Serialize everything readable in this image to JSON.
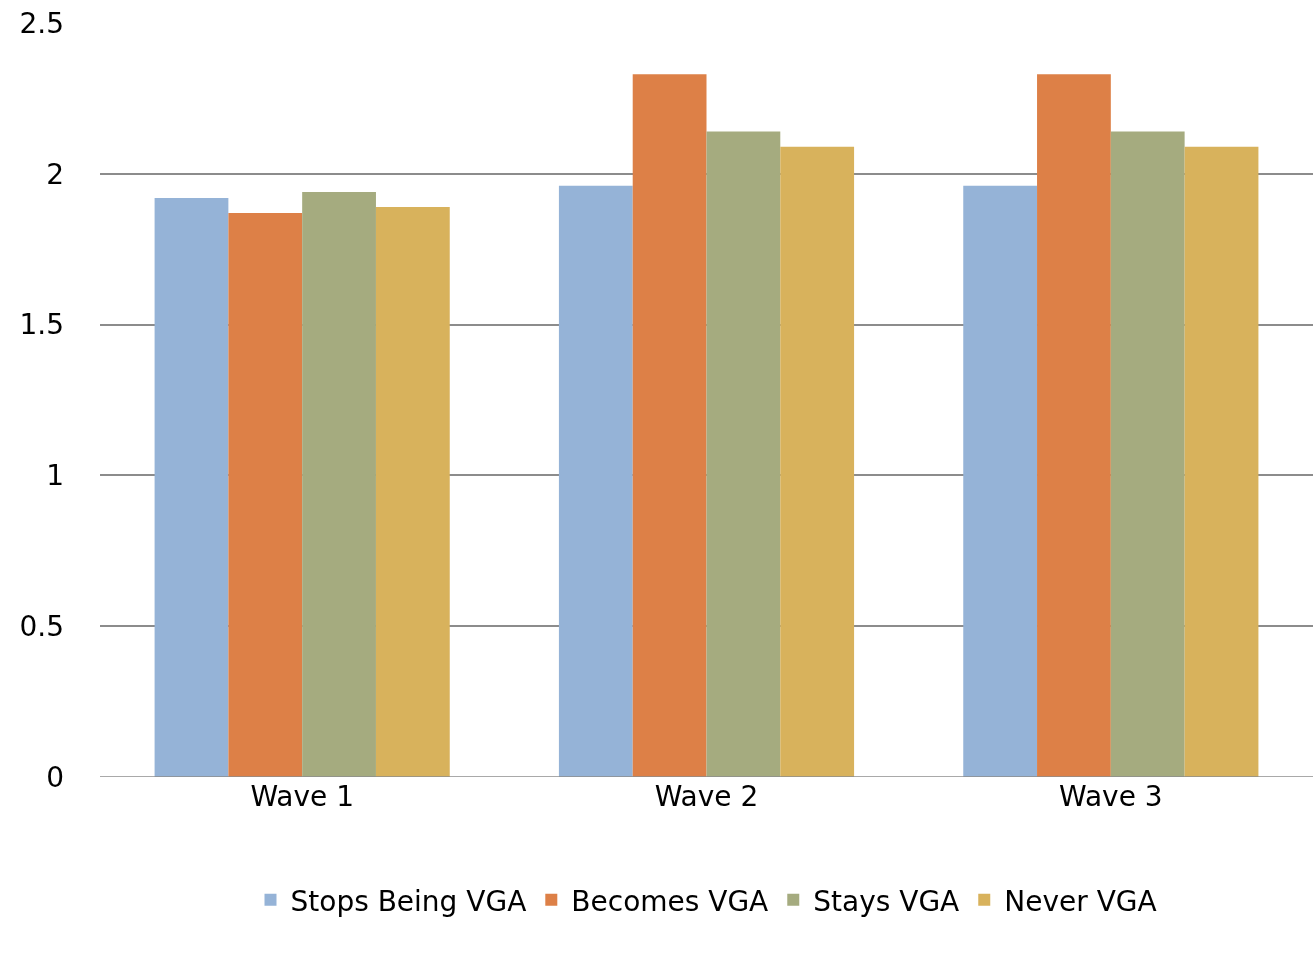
{
  "chart_data": {
    "type": "bar",
    "categories": [
      "Wave 1",
      "Wave 2",
      "Wave 3"
    ],
    "series": [
      {
        "name": "Stops Being VGA",
        "color": "#95b3d7",
        "values": [
          1.92,
          1.96,
          1.96
        ]
      },
      {
        "name": "Becomes VGA",
        "color": "#dd8047",
        "values": [
          1.87,
          2.33,
          2.33
        ]
      },
      {
        "name": "Stays VGA",
        "color": "#a5ab7f",
        "values": [
          1.94,
          2.14,
          2.14
        ]
      },
      {
        "name": "Never VGA",
        "color": "#d8b25c",
        "values": [
          1.89,
          2.09,
          2.09
        ]
      }
    ],
    "ylim": [
      0,
      2.5
    ],
    "yticks": [
      0,
      0.5,
      1,
      1.5,
      2,
      2.5
    ],
    "grid": "y",
    "legend": "bottom"
  }
}
